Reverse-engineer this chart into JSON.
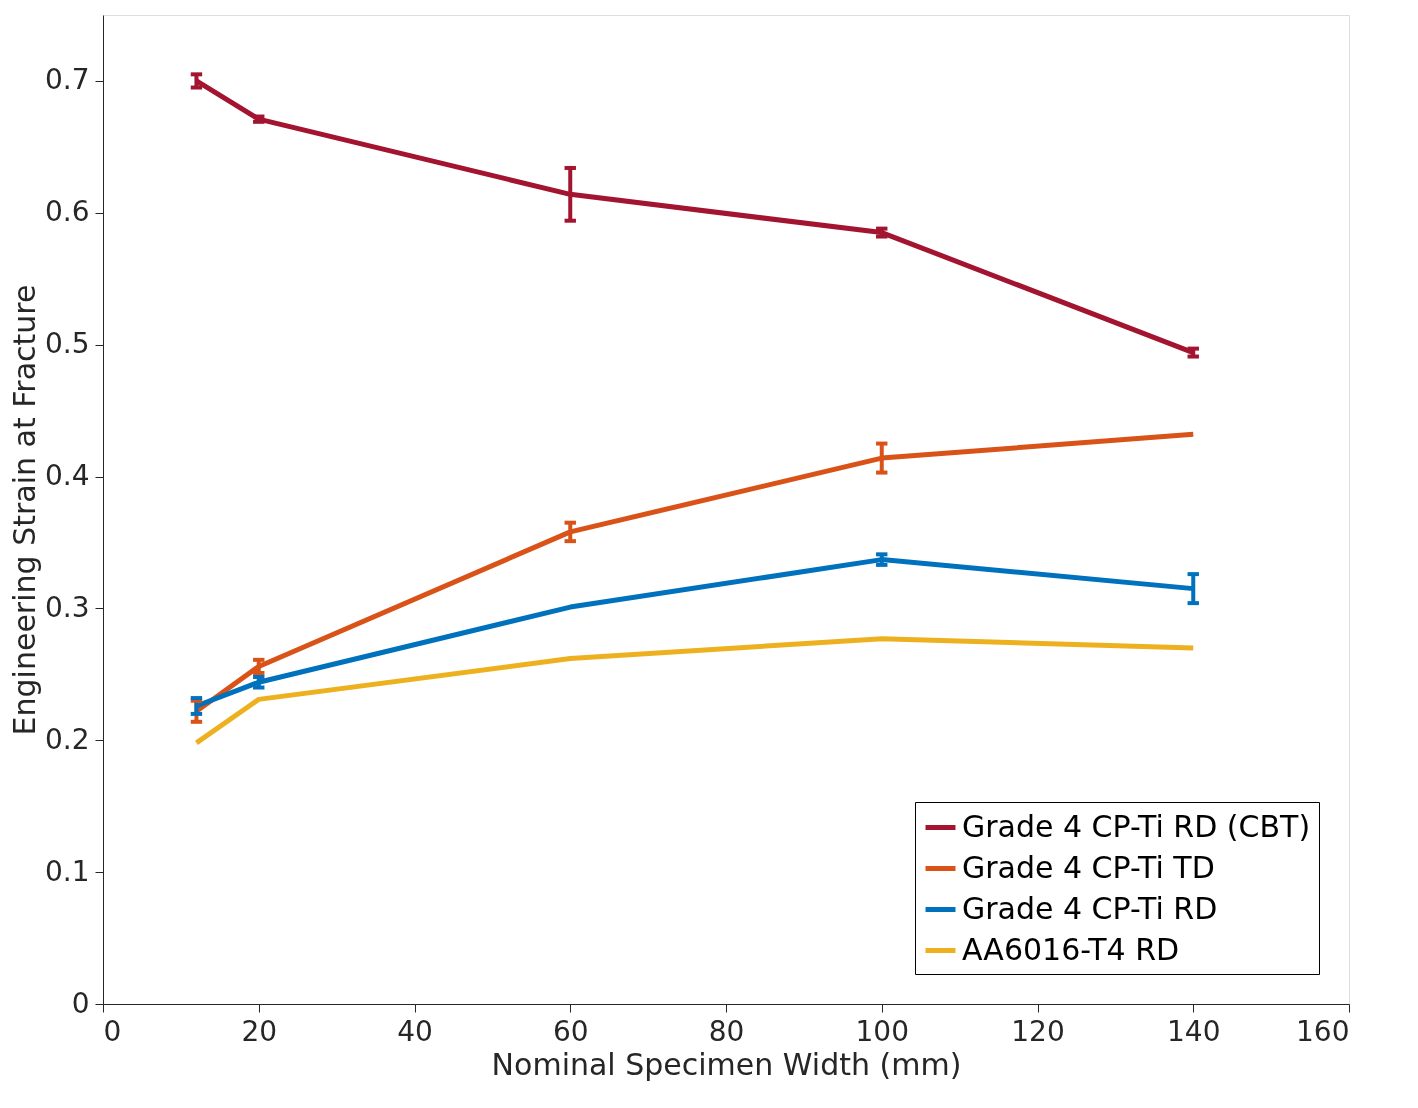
{
  "chart_data": {
    "type": "line",
    "xlabel": "Nominal Specimen Width (mm)",
    "ylabel": "Engineering Strain at Fracture",
    "x": [
      12,
      20,
      60,
      100,
      140
    ],
    "series": [
      {
        "name": "Grade 4 CP-Ti RD (CBT)",
        "color": "#a2142f",
        "values": [
          0.7,
          0.671,
          0.614,
          0.585,
          0.494
        ],
        "errors": [
          0.005,
          0.002,
          0.02,
          0.003,
          0.003
        ]
      },
      {
        "name": "Grade 4 CP-Ti TD",
        "color": "#d95319",
        "values": [
          0.222,
          0.256,
          0.358,
          0.414,
          0.432
        ],
        "errors": [
          0.008,
          0.005,
          0.007,
          0.011,
          null
        ]
      },
      {
        "name": "Grade 4 CP-Ti RD",
        "color": "#0072bd",
        "values": [
          0.226,
          0.244,
          0.301,
          0.337,
          0.315
        ],
        "errors": [
          0.006,
          0.004,
          null,
          0.004,
          0.011
        ]
      },
      {
        "name": "AA6016-T4 RD",
        "color": "#edb120",
        "values": [
          0.198,
          0.231,
          0.262,
          0.277,
          0.27
        ]
      }
    ],
    "xlim": [
      0,
      160
    ],
    "xticks": [
      0,
      20,
      40,
      60,
      80,
      100,
      120,
      140,
      160
    ],
    "ylim": [
      0,
      0.75
    ],
    "yticks": [
      0,
      0.1,
      0.2,
      0.3,
      0.4,
      0.5,
      0.6,
      0.7
    ],
    "grid": false,
    "legend": "bottom right",
    "marker": "none",
    "line_style": "solid"
  }
}
